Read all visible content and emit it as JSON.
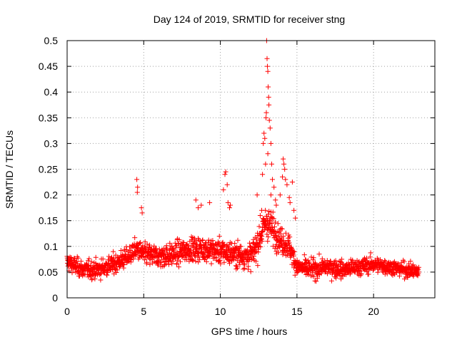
{
  "chart_data": {
    "type": "scatter",
    "title": "Day 124 of 2019, SRMTID for receiver stng",
    "xlabel": "GPS time / hours",
    "ylabel": "SRMTID / TECUs",
    "xlim": [
      0,
      24
    ],
    "ylim": [
      0,
      0.5
    ],
    "x_ticks": [
      0,
      5,
      10,
      15,
      20
    ],
    "x_tick_labels": [
      "0",
      "5",
      "10",
      "15",
      "20"
    ],
    "y_ticks": [
      0,
      0.05,
      0.1,
      0.15,
      0.2,
      0.25,
      0.3,
      0.35,
      0.4,
      0.45,
      0.5
    ],
    "y_tick_labels": [
      "0",
      "0.05",
      "0.1",
      "0.15",
      "0.2",
      "0.25",
      "0.3",
      "0.35",
      "0.4",
      "0.45",
      "0.5"
    ],
    "grid": true,
    "marker": "+",
    "series": [
      {
        "name": "SRMTID",
        "color": "#ff0000",
        "trend": [
          [
            0.0,
            0.07
          ],
          [
            1.0,
            0.055
          ],
          [
            2.0,
            0.055
          ],
          [
            3.0,
            0.065
          ],
          [
            4.0,
            0.08
          ],
          [
            4.5,
            0.095
          ],
          [
            5.0,
            0.085
          ],
          [
            6.0,
            0.08
          ],
          [
            7.0,
            0.085
          ],
          [
            8.0,
            0.095
          ],
          [
            9.0,
            0.095
          ],
          [
            10.0,
            0.09
          ],
          [
            11.0,
            0.085
          ],
          [
            12.0,
            0.08
          ],
          [
            12.5,
            0.11
          ],
          [
            13.0,
            0.15
          ],
          [
            13.5,
            0.13
          ],
          [
            14.0,
            0.11
          ],
          [
            14.5,
            0.1
          ],
          [
            15.0,
            0.06
          ],
          [
            16.0,
            0.055
          ],
          [
            17.0,
            0.06
          ],
          [
            18.0,
            0.055
          ],
          [
            19.0,
            0.06
          ],
          [
            20.0,
            0.065
          ],
          [
            21.0,
            0.06
          ],
          [
            22.0,
            0.055
          ],
          [
            23.0,
            0.05
          ]
        ],
        "spread": [
          [
            0.0,
            0.03
          ],
          [
            4.0,
            0.035
          ],
          [
            6.0,
            0.04
          ],
          [
            12.0,
            0.045
          ],
          [
            13.0,
            0.06
          ],
          [
            15.0,
            0.035
          ],
          [
            23.0,
            0.025
          ]
        ],
        "x_range": [
          0.0,
          22.95
        ],
        "sample_interval_hours": 0.0125,
        "outliers": [
          [
            4.55,
            0.23
          ],
          [
            4.6,
            0.215
          ],
          [
            4.58,
            0.205
          ],
          [
            4.85,
            0.175
          ],
          [
            4.9,
            0.165
          ],
          [
            8.4,
            0.19
          ],
          [
            8.55,
            0.175
          ],
          [
            8.75,
            0.18
          ],
          [
            9.3,
            0.185
          ],
          [
            10.2,
            0.21
          ],
          [
            10.3,
            0.24
          ],
          [
            10.35,
            0.245
          ],
          [
            10.45,
            0.22
          ],
          [
            10.5,
            0.185
          ],
          [
            10.65,
            0.18
          ],
          [
            10.6,
            0.175
          ],
          [
            12.4,
            0.2
          ],
          [
            12.6,
            0.16
          ],
          [
            12.7,
            0.17
          ],
          [
            12.75,
            0.24
          ],
          [
            12.8,
            0.3
          ],
          [
            12.85,
            0.32
          ],
          [
            12.9,
            0.31
          ],
          [
            12.95,
            0.26
          ],
          [
            12.98,
            0.35
          ],
          [
            13.0,
            0.36
          ],
          [
            13.02,
            0.5
          ],
          [
            13.05,
            0.465
          ],
          [
            13.07,
            0.45
          ],
          [
            13.1,
            0.44
          ],
          [
            13.12,
            0.41
          ],
          [
            13.15,
            0.39
          ],
          [
            13.17,
            0.375
          ],
          [
            13.2,
            0.345
          ],
          [
            13.25,
            0.33
          ],
          [
            13.3,
            0.3
          ],
          [
            13.1,
            0.28
          ],
          [
            13.35,
            0.26
          ],
          [
            13.4,
            0.23
          ],
          [
            13.5,
            0.215
          ],
          [
            13.3,
            0.2
          ],
          [
            13.6,
            0.19
          ],
          [
            13.65,
            0.18
          ],
          [
            14.1,
            0.27
          ],
          [
            14.15,
            0.26
          ],
          [
            14.2,
            0.25
          ],
          [
            14.05,
            0.235
          ],
          [
            14.25,
            0.23
          ],
          [
            14.35,
            0.22
          ],
          [
            13.9,
            0.2
          ],
          [
            14.5,
            0.195
          ],
          [
            14.55,
            0.185
          ],
          [
            14.7,
            0.225
          ],
          [
            14.8,
            0.17
          ],
          [
            14.9,
            0.155
          ]
        ]
      }
    ]
  }
}
